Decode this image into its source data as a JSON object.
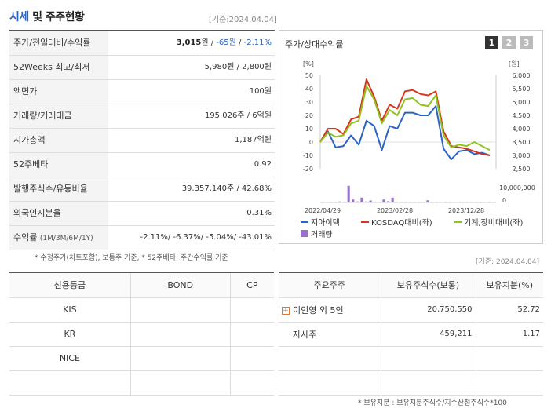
{
  "header": {
    "title_accent": "시세",
    "title_rest": " 및 주주현황",
    "asof": "[기준:2024.04.04]"
  },
  "stock_table": {
    "rows": [
      {
        "label": "주가/전일대비/수익률",
        "price": "3,015",
        "unit_won": "원",
        "sep1": " / ",
        "change": "-65원",
        "sep2": " / ",
        "rate": "-2.11%"
      },
      {
        "label": "52Weeks 최고/최저",
        "value": "5,980원 / 2,800원"
      },
      {
        "label": "액면가",
        "value": "100원"
      },
      {
        "label": "거래량/거래대금",
        "value": "195,026주 / 6억원"
      },
      {
        "label": "시가총액",
        "value": "1,187억원"
      },
      {
        "label": "52주베타",
        "value": "0.92"
      },
      {
        "label": "발행주식수/유동비율",
        "value": "39,357,140주 / 42.68%"
      },
      {
        "label": "외국인지분율",
        "value": "0.31%"
      },
      {
        "label": "수익률",
        "label_sub": "(1M/3M/6M/1Y)",
        "value": "-2.11%/ -6.37%/ -5.04%/ -43.01%"
      }
    ],
    "footnote": "* 수정주가(차트포함), 보통주 기준, * 52주베타: 주간수익률 기준"
  },
  "chart_panel": {
    "title": "주가/상대수익률",
    "buttons": [
      "1",
      "2",
      "3"
    ],
    "active_button": 0
  },
  "chart_data": {
    "type": "line",
    "left_axis_unit": "[%]",
    "right_axis_unit": "[원]",
    "left_ylim": [
      -20,
      50
    ],
    "left_ticks": [
      "50",
      "40",
      "30",
      "20",
      "10",
      "0",
      "-10",
      "-20"
    ],
    "right_ylim": [
      2500,
      6000
    ],
    "right_ticks": [
      "6,000",
      "5,500",
      "5,000",
      "4,500",
      "4,000",
      "3,500",
      "3,000",
      "2,500"
    ],
    "volume_tick": "10,000,000",
    "volume_zero": "0",
    "x_tick_labels": [
      "2022/04/29",
      "2023/02/28",
      "2023/12/28"
    ],
    "series": [
      {
        "name": "지아이텍",
        "color": "#2a64c4",
        "values": [
          0,
          8,
          -4,
          -3,
          5,
          -2,
          16,
          12,
          -6,
          12,
          10,
          22,
          22,
          20,
          20,
          27,
          -5,
          -13,
          -7,
          -6,
          -9,
          -8,
          -10
        ]
      },
      {
        "name": "KOSDAQ대비(좌)",
        "color": "#d6361e",
        "values": [
          0,
          10,
          10,
          6,
          17,
          19,
          47,
          34,
          16,
          28,
          25,
          38,
          39,
          36,
          35,
          38,
          8,
          -3,
          -4,
          -5,
          -7,
          -9,
          -10
        ]
      },
      {
        "name": "기계,장비대비(좌)",
        "color": "#8fc31f",
        "values": [
          0,
          7,
          4,
          5,
          14,
          16,
          42,
          32,
          14,
          24,
          20,
          32,
          33,
          28,
          27,
          35,
          5,
          -4,
          -2,
          -3,
          0,
          -3,
          -6
        ]
      }
    ],
    "volume": {
      "name": "거래량",
      "color": "#9b6fd0",
      "values": [
        0.3,
        0.2,
        0.2,
        0.2,
        0.5,
        0.3,
        8.5,
        1.5,
        0.5,
        2.5,
        0.5,
        1,
        0.2,
        0.2,
        1.5,
        0.6,
        2.5,
        0.3,
        0.2,
        0.2,
        0.2,
        0.2,
        0.2,
        0.2,
        1.1,
        0.2,
        0.4,
        0.1,
        0.2,
        0.2,
        0.1,
        0.1,
        0.3,
        0.1,
        0.1,
        0.1,
        0.3,
        0.1,
        0.2,
        0.3
      ]
    }
  },
  "asof_mid": "[기준: 2024.04.04]",
  "credit": {
    "headers": [
      "신용등급",
      "BOND",
      "CP"
    ],
    "rows": [
      [
        "KIS",
        "",
        ""
      ],
      [
        "KR",
        "",
        ""
      ],
      [
        "NICE",
        "",
        ""
      ],
      [
        "",
        "",
        ""
      ]
    ]
  },
  "holders": {
    "headers": [
      "주요주주",
      "보유주식수(보통)",
      "보유지분(%)"
    ],
    "rows": [
      {
        "name": "이인영 외 5인",
        "shares": "20,750,550",
        "pct": "52.72",
        "expandable": true
      },
      {
        "name": "자사주",
        "shares": "459,211",
        "pct": "1.17",
        "expandable": false
      },
      {
        "name": "",
        "shares": "",
        "pct": ""
      },
      {
        "name": "",
        "shares": "",
        "pct": ""
      }
    ],
    "footnote": "* 보유지분 : 보유지분주식수/지수산정주식수*100"
  }
}
